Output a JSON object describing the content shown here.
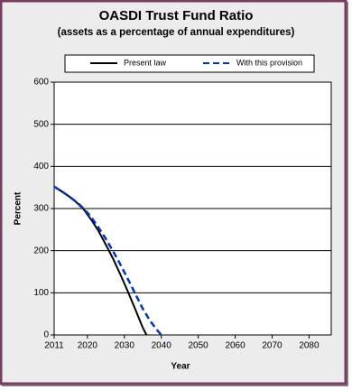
{
  "chart_data": {
    "type": "line",
    "title": "OASDI Trust Fund Ratio",
    "subtitle": "(assets as a percentage of annual expenditures)",
    "x_label": "Year",
    "y_label": "Percent",
    "xlim": [
      2011,
      2086
    ],
    "xticks": [
      2011,
      2020,
      2030,
      2040,
      2050,
      2060,
      2070,
      2080
    ],
    "ylim": [
      0,
      600
    ],
    "yticks": [
      0,
      100,
      200,
      300,
      400,
      500,
      600
    ],
    "grid": true,
    "legend": "top",
    "series": [
      {
        "name": "Present law",
        "color": "#000000",
        "dash": false,
        "x": [
          2011,
          2013,
          2015,
          2017,
          2019,
          2021,
          2023,
          2025,
          2027,
          2029,
          2031,
          2033,
          2035,
          2036
        ],
        "values": [
          352,
          341,
          329,
          315,
          298,
          274,
          247,
          214,
          180,
          142,
          102,
          60,
          17,
          0
        ]
      },
      {
        "name": "With this provision",
        "color": "#0033cc",
        "dash": true,
        "x": [
          2011,
          2013,
          2015,
          2017,
          2019,
          2021,
          2023,
          2025,
          2027,
          2029,
          2031,
          2033,
          2035,
          2037,
          2039,
          2040
        ],
        "values": [
          352,
          341,
          329,
          316,
          300,
          280,
          255,
          228,
          198,
          166,
          132,
          97,
          62,
          33,
          10,
          0
        ]
      }
    ]
  }
}
